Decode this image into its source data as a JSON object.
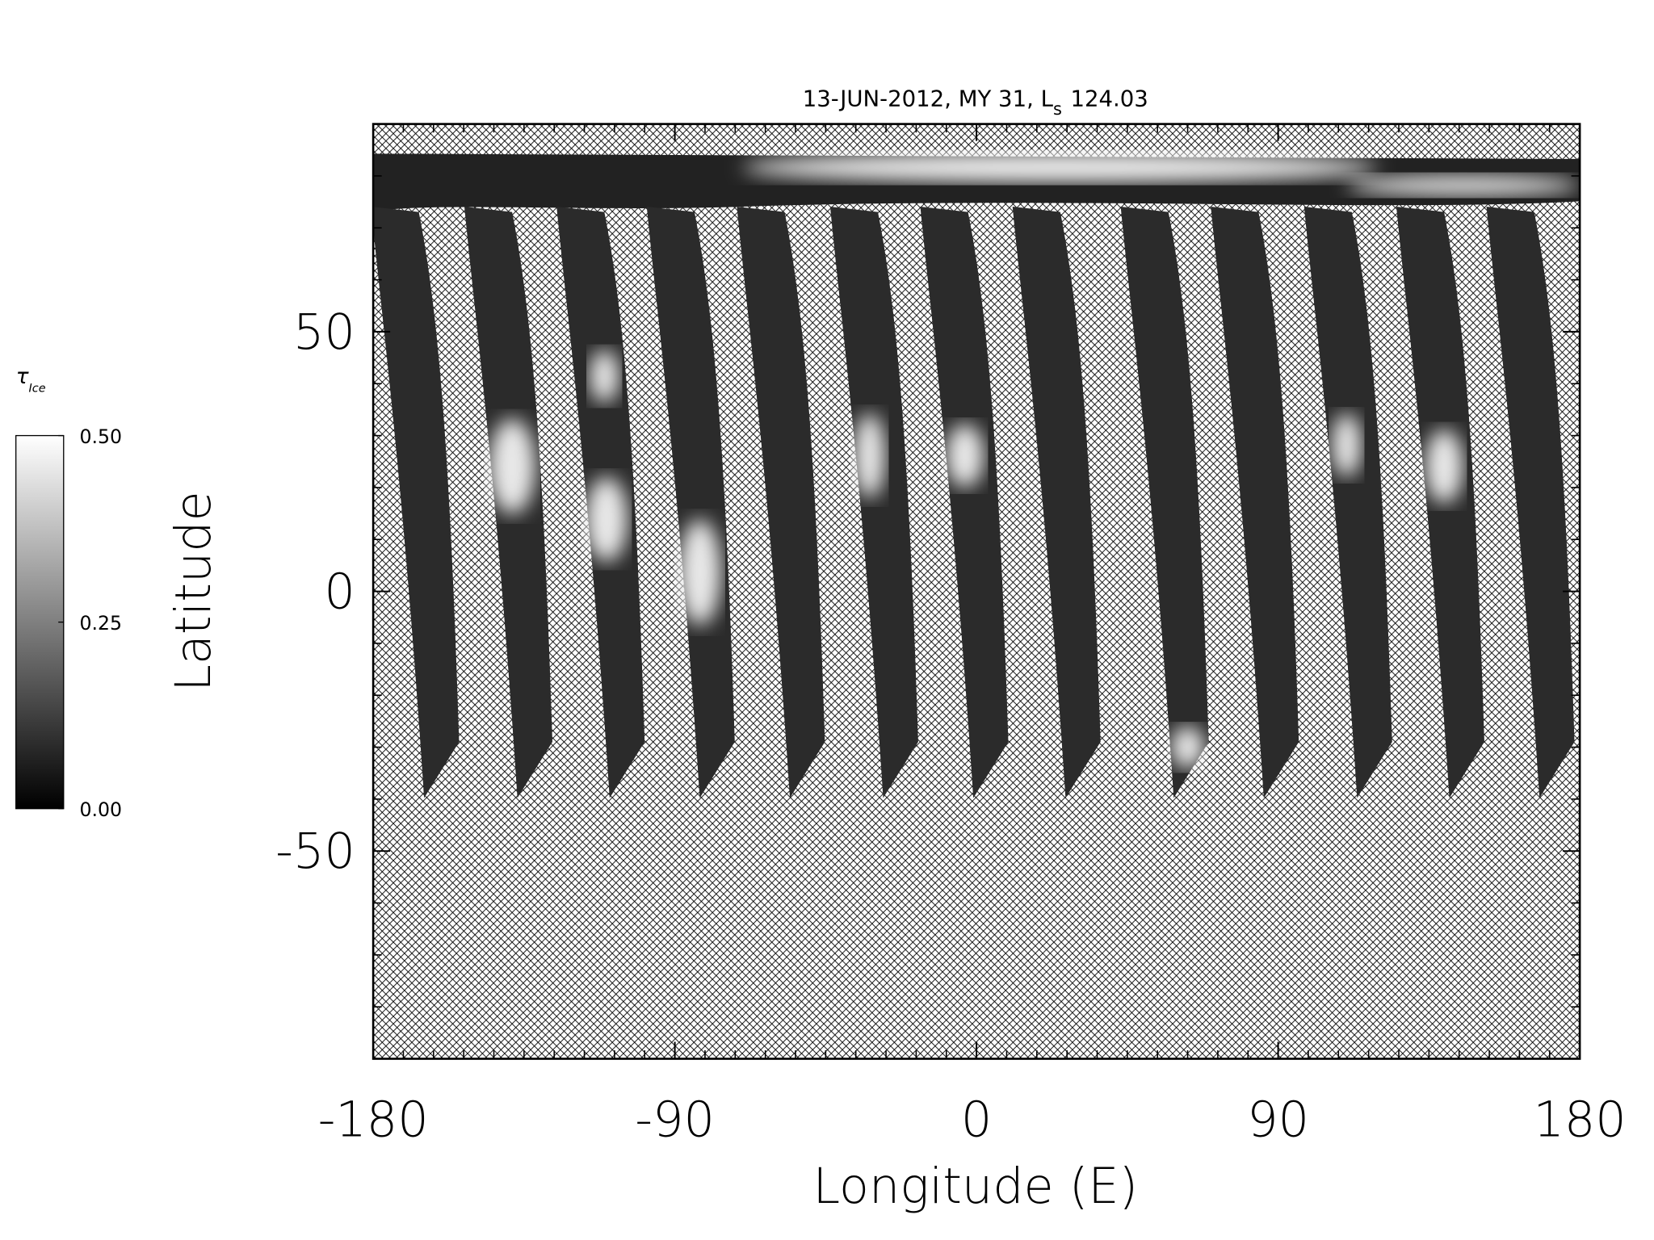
{
  "chart_data": {
    "type": "map",
    "title": "13-JUN-2012, MY 31,  L",
    "title_subscript": "s",
    "title_value": "124.03",
    "xlabel": "Longitude (E)",
    "ylabel": "Latitude",
    "xlim": [
      -180,
      180
    ],
    "xticks": [
      -180,
      -90,
      0,
      90,
      180
    ],
    "xminorticks": [
      -171,
      -162,
      -153,
      -144,
      -135,
      -126,
      -117,
      -108,
      -99,
      -81,
      -72,
      -63,
      -54,
      -45,
      -36,
      -27,
      -18,
      -9,
      9,
      18,
      27,
      36,
      45,
      54,
      63,
      72,
      81,
      99,
      108,
      117,
      126,
      135,
      144,
      153,
      162,
      171
    ],
    "ylim": [
      -90,
      90
    ],
    "yticks": [
      -50,
      0,
      50
    ],
    "yminorticks": [
      -80,
      -70,
      -60,
      -40,
      -30,
      -20,
      -10,
      10,
      20,
      30,
      40,
      60,
      70,
      80
    ],
    "colorbar": {
      "label": "τ",
      "label_subscript": "Ice",
      "lim": [
        0,
        0.5
      ],
      "colors": [
        "#000000",
        "#ffffff"
      ],
      "ticks": [
        {
          "value": 0,
          "label": "0.00"
        },
        {
          "value": 0.25,
          "label": "0.25"
        },
        {
          "value": 0.5,
          "label": "0.50"
        }
      ]
    }
  }
}
